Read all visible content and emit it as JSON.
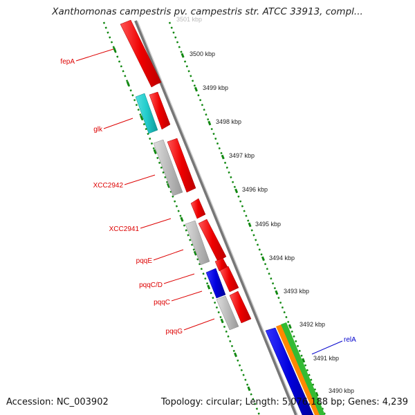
{
  "title": "Xanthomonas campestris pv. campestris str. ATCC 33913, compl...",
  "footer": {
    "accession": "Accession: NC_003902",
    "topology": "Topology: circular; Length: 5,076,188 bp; Genes: 4,239"
  },
  "scale_labels": [
    "3501 kbp",
    "3500 kbp",
    "3499 kbp",
    "3498 kbp",
    "3497 kbp",
    "3496 kbp",
    "3495 kbp",
    "3494 kbp",
    "3493 kbp",
    "3492 kbp",
    "3491 kbp",
    "3490 kbp"
  ],
  "genes": [
    {
      "name": "fepA",
      "color": "#dd0000",
      "strand": "forward"
    },
    {
      "name": "glk",
      "color": "#dd0000",
      "strand": "forward"
    },
    {
      "name": "XCC2942",
      "color": "#dd0000",
      "strand": "forward"
    },
    {
      "name": "XCC2941",
      "color": "#dd0000",
      "strand": "forward"
    },
    {
      "name": "pqqE",
      "color": "#dd0000",
      "strand": "forward"
    },
    {
      "name": "pqqC/D",
      "color": "#dd0000",
      "strand": "forward"
    },
    {
      "name": "pqqC",
      "color": "#dd0000",
      "strand": "forward"
    },
    {
      "name": "pqqG",
      "color": "#dd0000",
      "strand": "forward"
    },
    {
      "name": "relA",
      "color": "#0000cc",
      "strand": "reverse"
    }
  ],
  "colors": {
    "cds": "#ff0000",
    "cds_other": "#bbbbbb",
    "glk_feature": "#22cccc",
    "blue_feature": "#0000dd",
    "orange_feature": "#ff8800",
    "green_feature": "#33bb33",
    "backbone": "#777777",
    "ticks": "#118811"
  }
}
